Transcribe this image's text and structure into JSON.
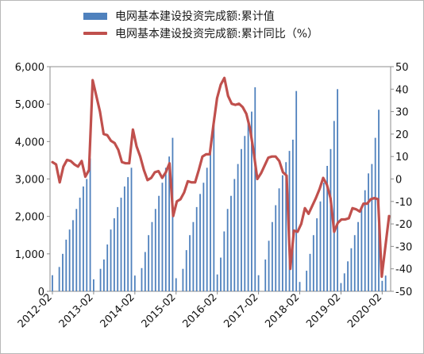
{
  "chart_data": {
    "type": "bar+line",
    "legend": [
      {
        "label": "电网基本建设投资完成额:累计值",
        "kind": "bar",
        "color": "#4f81bd"
      },
      {
        "label": "电网基本建设投资完成额:累计同比（%）",
        "kind": "line",
        "color": "#c0504d"
      }
    ],
    "left_axis": {
      "min": 0,
      "max": 6000,
      "ticks": [
        "0",
        "1,000",
        "2,000",
        "3,000",
        "4,000",
        "5,000",
        "6,000"
      ]
    },
    "right_axis": {
      "min": -50,
      "max": 50,
      "ticks": [
        "-50",
        "-40",
        "-30",
        "-20",
        "-10",
        "0",
        "10",
        "20",
        "30",
        "40",
        "50"
      ]
    },
    "x_labels": [
      "2012-02",
      "2013-02",
      "2014-02",
      "2015-02",
      "2016-02",
      "2017-02",
      "2018-02",
      "2019-02",
      "2020-02"
    ],
    "start_year": 2012,
    "series": [
      {
        "name": "电网基本建设投资完成额:累计值",
        "type": "bar",
        "values": [
          [
            430,
            650,
            1000,
            1380,
            1650,
            1900,
            2200,
            2500,
            2800,
            3000,
            3550
          ],
          [
            320,
            600,
            850,
            1250,
            1650,
            1950,
            2250,
            2500,
            2800,
            3050,
            3300
          ],
          [
            420,
            620,
            1050,
            1500,
            1850,
            2200,
            2550,
            2900,
            3300,
            3600,
            4100
          ],
          [
            350,
            600,
            1100,
            1500,
            1850,
            2250,
            2600,
            2900,
            3300,
            3700,
            4650
          ],
          [
            450,
            900,
            1600,
            2200,
            2550,
            3000,
            3400,
            3800,
            4150,
            4500,
            4800,
            5450
          ],
          [
            430,
            850,
            1350,
            1850,
            2300,
            2750,
            3100,
            3450,
            3750,
            4050,
            5350
          ],
          [
            250,
            550,
            1000,
            1500,
            1950,
            2400,
            2900,
            3350,
            3800,
            4550,
            5400
          ],
          [
            220,
            480,
            800,
            1150,
            1500,
            1850,
            2250,
            2700,
            3150,
            3400,
            4100,
            4850
          ],
          [
            280,
            420
          ]
        ]
      },
      {
        "name": "电网基本建设投资完成额:累计同比（%）",
        "type": "line",
        "values": [
          7.5,
          6.5,
          -1.5,
          5.5,
          8.5,
          8,
          6.5,
          5.5,
          8,
          1,
          4,
          44,
          37,
          30,
          20,
          19.5,
          17,
          16,
          13,
          7.5,
          7,
          7,
          22,
          14.5,
          10,
          4,
          -0.5,
          0.5,
          3,
          3.5,
          0.5,
          3,
          7,
          -16.5,
          -10,
          -9,
          -6,
          -1,
          -1.5,
          -1.5,
          4,
          10,
          11,
          11,
          24,
          36,
          42,
          45,
          37,
          33.5,
          33,
          33.5,
          32,
          29,
          22.5,
          12,
          0,
          2.5,
          6,
          9.5,
          10,
          10,
          8,
          3,
          1.5,
          -40,
          -23,
          -23.5,
          -20,
          -13,
          -15.5,
          -12,
          -8.5,
          -4.5,
          0.5,
          -2.5,
          -8.5,
          -23.5,
          -19.5,
          -18,
          -18,
          -17.5,
          -13,
          -13.5,
          -14.5,
          -11,
          -11,
          -9,
          -8.5,
          -9,
          -43.5,
          -30,
          -16.5
        ]
      }
    ]
  }
}
